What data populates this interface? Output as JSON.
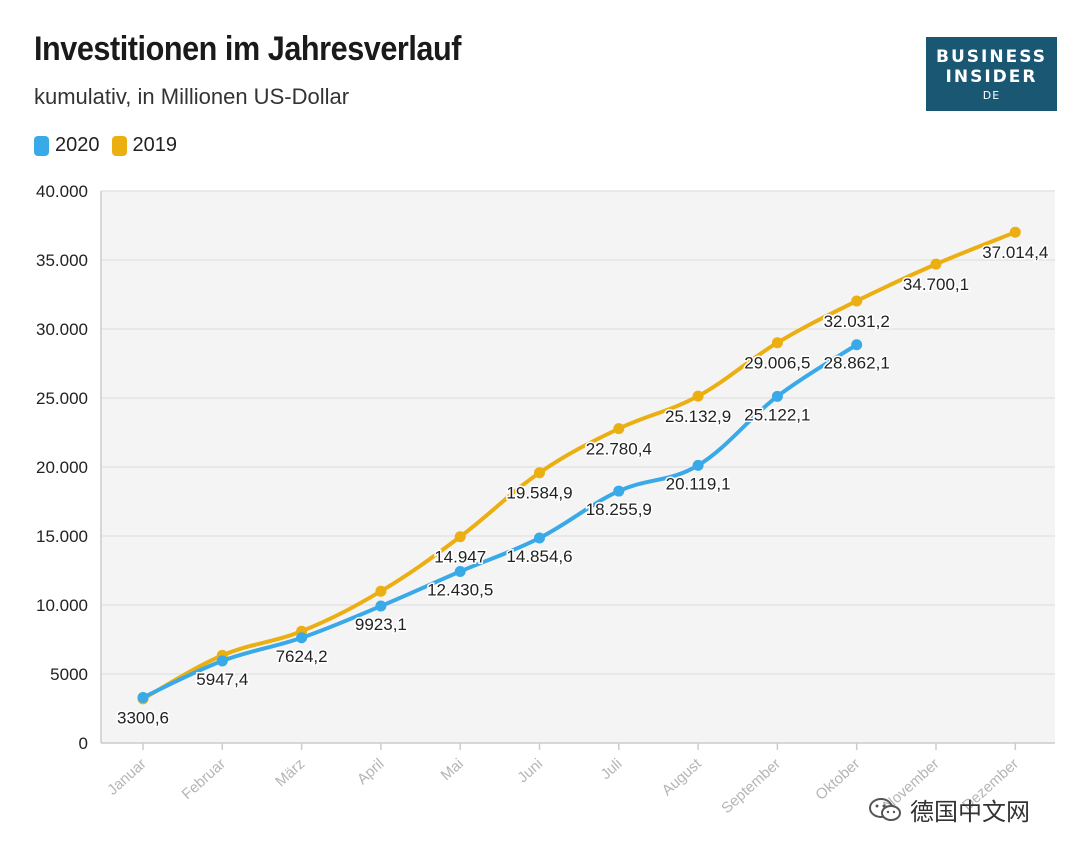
{
  "header": {
    "title": "Investitionen im Jahresverlauf",
    "subtitle": "kumulativ, in Millionen US-Dollar"
  },
  "logo": {
    "line1": "BUSINESS",
    "line2": "INSIDER",
    "line3": "DE"
  },
  "watermark": {
    "text": "德国中文网"
  },
  "colors": {
    "series2020": "#3aa9e8",
    "series2019": "#ebaf12",
    "plotBg": "#f4f4f4",
    "grid": "#e3e3e3"
  },
  "legend": [
    {
      "name": "2020",
      "color": "#3aa9e8"
    },
    {
      "name": "2019",
      "color": "#ebaf12"
    }
  ],
  "chart_data": {
    "type": "line",
    "title": "Investitionen im Jahresverlauf",
    "subtitle": "kumulativ, in Millionen US-Dollar",
    "categories": [
      "Januar",
      "Februar",
      "März",
      "April",
      "Mai",
      "Juni",
      "Juli",
      "August",
      "September",
      "Oktober",
      "November",
      "Dezember"
    ],
    "ylim": [
      0,
      40000
    ],
    "yticks": [
      0,
      5000,
      10000,
      15000,
      20000,
      25000,
      30000,
      35000,
      40000
    ],
    "ytick_labels": [
      "0",
      "5000",
      "10.000",
      "15.000",
      "20.000",
      "25.000",
      "30.000",
      "35.000",
      "40.000"
    ],
    "grid": true,
    "legend_position": "top-left",
    "series": [
      {
        "name": "2020",
        "values": [
          3300.6,
          5947.4,
          7624.2,
          9923.1,
          12430.5,
          14854.6,
          18255.9,
          20119.1,
          25122.1,
          28862.1,
          null,
          null
        ],
        "labels": [
          "3300,6",
          "5947,4",
          "7624,2",
          "9923,1",
          "12.430,5",
          "14.854,6",
          "18.255,9",
          "20.119,1",
          "25.122,1",
          "28.862,1",
          null,
          null
        ]
      },
      {
        "name": "2019",
        "values": [
          3200,
          6350,
          8100,
          11000,
          14947,
          19584.9,
          22780.4,
          25132.9,
          29006.5,
          32031.2,
          34700.1,
          37014.4
        ],
        "labels": [
          null,
          null,
          null,
          null,
          "14.947",
          "19.584,9",
          "22.780,4",
          "25.132,9",
          "29.006,5",
          "32.031,2",
          "34.700,1",
          "37.014,4"
        ]
      }
    ]
  }
}
